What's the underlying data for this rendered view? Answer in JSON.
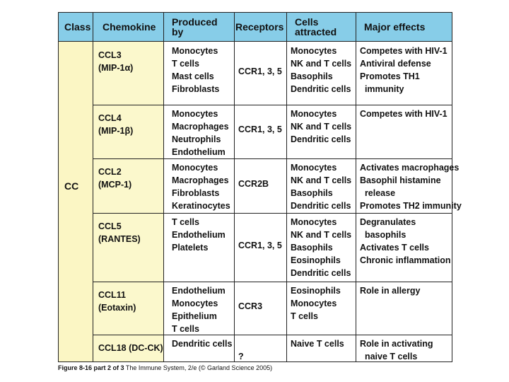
{
  "headers": {
    "class": "Class",
    "chemokine": "Chemokine",
    "produced_by": "Produced\nby",
    "receptors": "Receptors",
    "cells_attracted": "Cells\nattracted",
    "major_effects": "Major effects"
  },
  "class_value": "CC",
  "rows": [
    {
      "chemokine": [
        "CCL3",
        "(MIP-1α)"
      ],
      "produced_by": [
        "Monocytes",
        "T cells",
        "Mast cells",
        "Fibroblasts"
      ],
      "receptors": "CCR1, 3, 5",
      "cells_attracted": [
        "Monocytes",
        "NK and T cells",
        "Basophils",
        "Dendritic cells"
      ],
      "major_effects": [
        "Competes with HIV-1",
        "Antiviral defense",
        "Promotes TH1",
        "  immunity"
      ]
    },
    {
      "chemokine": [
        "CCL4",
        "(MIP-1β)"
      ],
      "produced_by": [
        "Monocytes",
        "Macrophages",
        "Neutrophils",
        "Endothelium"
      ],
      "receptors": "CCR1, 3, 5",
      "cells_attracted": [
        "Monocytes",
        "NK and T cells",
        "Dendritic cells"
      ],
      "major_effects": [
        "Competes with HIV-1"
      ]
    },
    {
      "chemokine": [
        "CCL2",
        "(MCP-1)"
      ],
      "produced_by": [
        "Monocytes",
        "Macrophages",
        "Fibroblasts",
        "Keratinocytes"
      ],
      "receptors": "CCR2B",
      "cells_attracted": [
        "Monocytes",
        "NK and T cells",
        "Basophils",
        "Dendritic cells"
      ],
      "major_effects": [
        "Activates macrophages",
        "Basophil histamine",
        "  release",
        "Promotes TH2 immunity"
      ]
    },
    {
      "chemokine": [
        "CCL5",
        "(RANTES)"
      ],
      "produced_by": [
        "T cells",
        "Endothelium",
        "Platelets"
      ],
      "receptors": "CCR1, 3, 5",
      "cells_attracted": [
        "Monocytes",
        "NK and T cells",
        "Basophils",
        "Eosinophils",
        "Dendritic cells"
      ],
      "major_effects": [
        "Degranulates",
        "  basophils",
        "Activates T cells",
        "Chronic inflammation"
      ]
    },
    {
      "chemokine": [
        "CCL11",
        "(Eotaxin)"
      ],
      "produced_by": [
        "Endothelium",
        "Monocytes",
        "Epithelium",
        "T cells"
      ],
      "receptors": "CCR3",
      "cells_attracted": [
        "Eosinophils",
        "Monocytes",
        "T cells"
      ],
      "major_effects": [
        "Role in allergy"
      ]
    },
    {
      "chemokine": [
        "CCL18 (DC-CK)"
      ],
      "produced_by": [
        "Dendritic cells"
      ],
      "receptors": "?",
      "cells_attracted": [
        "Naive T cells"
      ],
      "major_effects": [
        "Role in activating",
        "  naive T cells"
      ]
    }
  ],
  "caption": {
    "figure": "Figure 8-16 part 2 of 3",
    "text": "The Immune System, 2/e (© Garland Science 2005)"
  }
}
